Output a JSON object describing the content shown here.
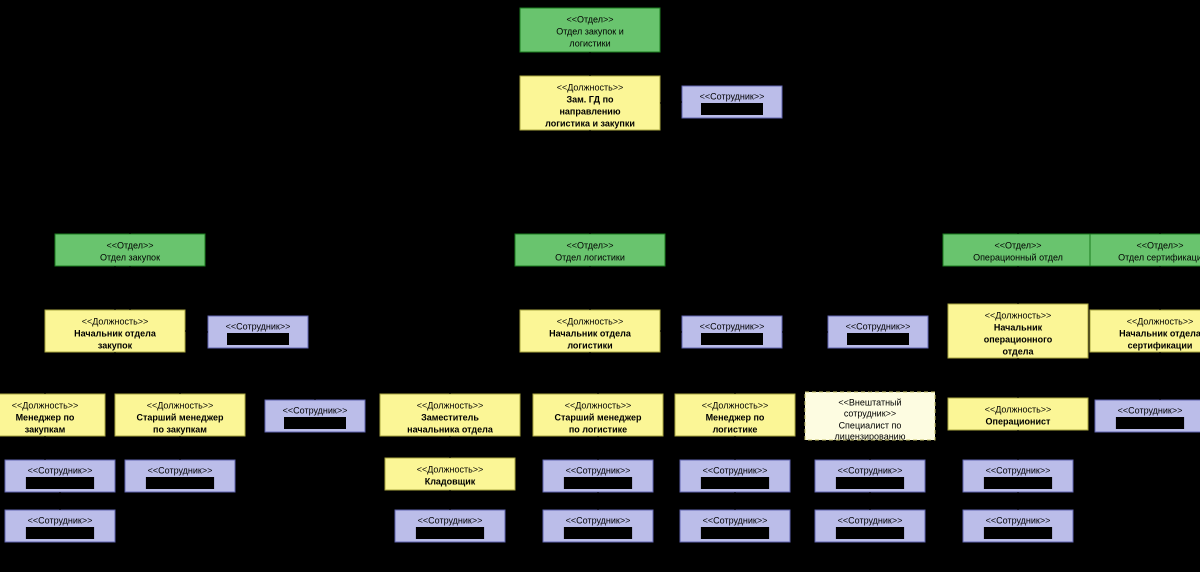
{
  "type": "tree-org-chart",
  "background_color": "#ffffff",
  "colors": {
    "dept_fill": "#69c46e",
    "dept_stroke": "#1b7b1f",
    "pos_fill": "#fbf696",
    "pos_stroke": "#aaa640",
    "emp_fill": "#bbbde9",
    "emp_stroke": "#6065b1",
    "ext_fill": "#fdfce1",
    "ext_stroke": "#c9c56a",
    "line": "#000000",
    "text": "#000000"
  },
  "font": {
    "family": "Verdana",
    "label_size": 9
  },
  "stereotypes": {
    "dept": "<<Отдел>>",
    "pos": "<<Должность>>",
    "emp": "<<Сотрудник>>",
    "ext1": "<<Внештатный",
    "ext2": "сотрудник>>"
  },
  "nodes": {
    "root_dept": {
      "l1": "Отдел закупок и",
      "l2": "логистики"
    },
    "root_pos": {
      "l1": "Зам. ГД по",
      "l2": "направлению",
      "l3": "логистика и закупки"
    },
    "dept_zak": {
      "l1": "Отдел закупок"
    },
    "dept_log": {
      "l1": "Отдел логистики"
    },
    "dept_oper": {
      "l1": "Операционный отдел"
    },
    "dept_cert": {
      "l1": "Отдел сертификаци"
    },
    "head_zak": {
      "l1": "Начальник отдела",
      "l2": "закупок"
    },
    "head_log": {
      "l1": "Начальник отдела",
      "l2": "логистики"
    },
    "head_oper": {
      "l1": "Начальник",
      "l2": "операционного",
      "l3": "отдела"
    },
    "head_cert": {
      "l1": "Начальник отдела",
      "l2": "сертификации"
    },
    "mgr_zak": {
      "l1": "Менеджер по",
      "l2": "закупкам"
    },
    "smgr_zak": {
      "l1": "Старший менеджер",
      "l2": "по закупкам"
    },
    "zam_log": {
      "l1": "Заместитель",
      "l2": "начальника отдела"
    },
    "smgr_log": {
      "l1": "Старший менеджер",
      "l2": "по логистике"
    },
    "mgr_log": {
      "l1": "Менеджер по",
      "l2": "логистике"
    },
    "ext_lic": {
      "l1": "Специалист по",
      "l2": "лицензированию"
    },
    "operac": {
      "l1": "Операционист"
    },
    "klad": {
      "l1": "Кладовщик"
    }
  }
}
